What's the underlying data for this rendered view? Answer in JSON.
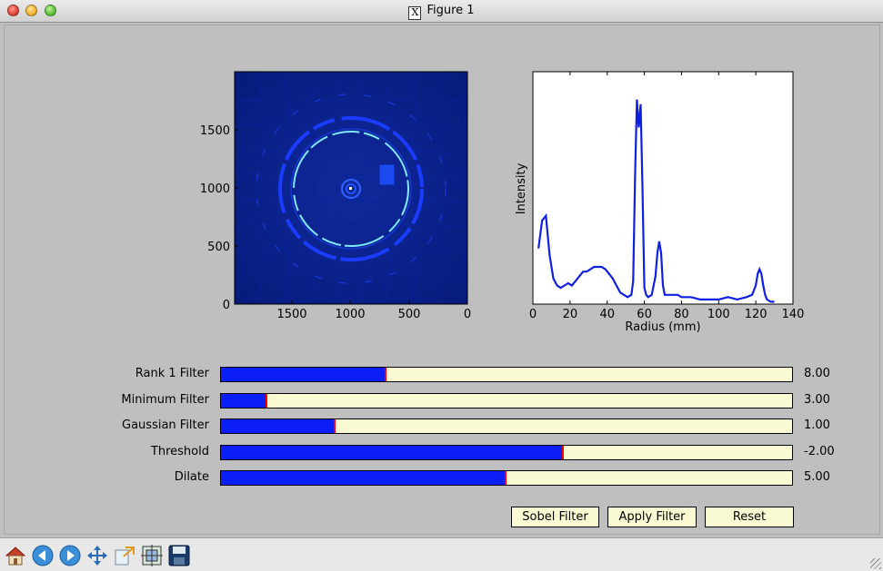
{
  "window": {
    "title": "Figure 1"
  },
  "image_panel": {
    "x_ticks": [
      "1500",
      "1000",
      "500",
      "0"
    ],
    "y_ticks": [
      "1500",
      "1000",
      "500",
      "0"
    ]
  },
  "profile_panel": {
    "xlabel": "Radius (mm)",
    "ylabel": "Intensity",
    "x_ticks": [
      "0",
      "20",
      "40",
      "60",
      "80",
      "100",
      "120",
      "140"
    ]
  },
  "chart_data": {
    "type": "line",
    "xlabel": "Radius (mm)",
    "ylabel": "Intensity",
    "xlim": [
      0,
      140
    ],
    "ylim": [
      0,
      1
    ],
    "color": "#1020e0",
    "x": [
      3,
      5,
      7,
      9,
      11,
      13,
      15,
      17,
      19,
      21,
      23,
      25,
      27,
      29,
      31,
      33,
      35,
      37,
      39,
      41,
      43,
      45,
      47,
      49,
      51,
      53,
      54,
      55,
      56,
      57,
      58,
      59,
      60,
      61,
      62,
      64,
      66,
      67,
      68,
      69,
      70,
      71,
      72,
      74,
      76,
      78,
      80,
      85,
      90,
      95,
      100,
      105,
      110,
      115,
      118,
      120,
      121,
      122,
      123,
      124,
      125,
      126,
      128,
      130
    ],
    "y": [
      0.24,
      0.36,
      0.38,
      0.21,
      0.11,
      0.08,
      0.07,
      0.08,
      0.09,
      0.08,
      0.1,
      0.12,
      0.14,
      0.14,
      0.15,
      0.16,
      0.16,
      0.16,
      0.15,
      0.13,
      0.11,
      0.08,
      0.05,
      0.04,
      0.03,
      0.04,
      0.1,
      0.56,
      0.88,
      0.76,
      0.86,
      0.5,
      0.07,
      0.04,
      0.03,
      0.04,
      0.12,
      0.22,
      0.27,
      0.22,
      0.08,
      0.04,
      0.04,
      0.04,
      0.04,
      0.04,
      0.03,
      0.03,
      0.02,
      0.02,
      0.02,
      0.03,
      0.02,
      0.03,
      0.04,
      0.08,
      0.13,
      0.15,
      0.13,
      0.08,
      0.04,
      0.02,
      0.01,
      0.01
    ]
  },
  "sliders": [
    {
      "label": "Rank 1 Filter",
      "value": "8.00",
      "fill": 0.29
    },
    {
      "label": "Minimum Filter",
      "value": "3.00",
      "fill": 0.082
    },
    {
      "label": "Gaussian Filter",
      "value": "1.00",
      "fill": 0.2
    },
    {
      "label": "Threshold",
      "value": "-2.00",
      "fill": 0.6
    },
    {
      "label": "Dilate",
      "value": "5.00",
      "fill": 0.5
    }
  ],
  "buttons": {
    "sobel": "Sobel Filter",
    "apply": "Apply Filter",
    "reset": "Reset"
  },
  "toolbar": {
    "icons": [
      "home-icon",
      "back-icon",
      "forward-icon",
      "pan-icon",
      "zoom-icon",
      "configure-subplots-icon",
      "save-icon"
    ]
  }
}
